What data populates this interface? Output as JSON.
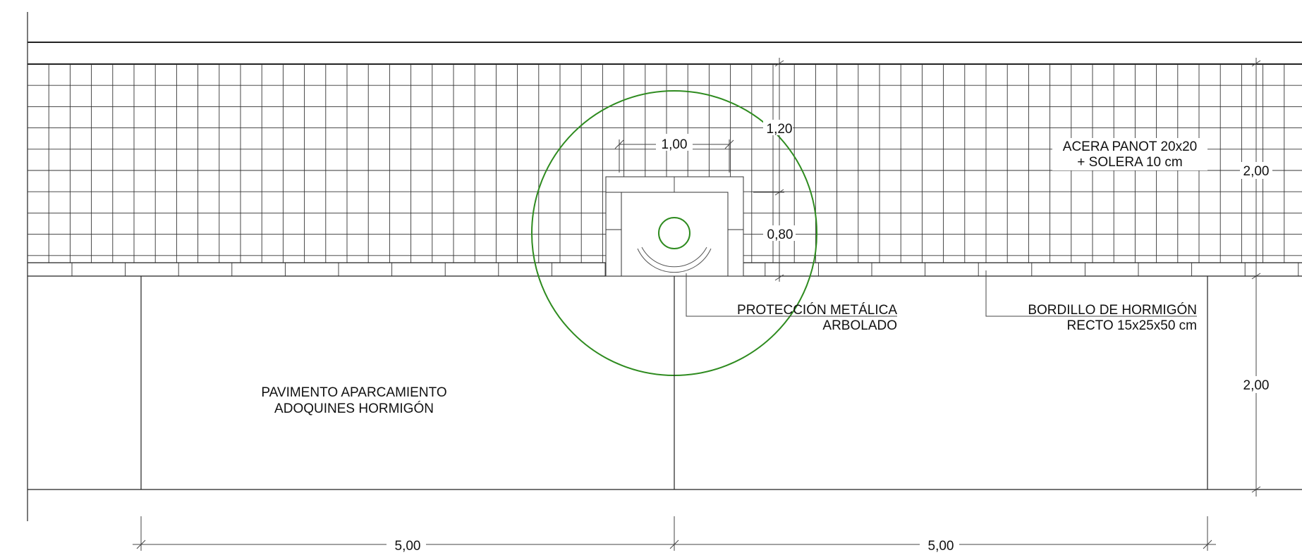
{
  "labels": {
    "sidewalk_line1": "ACERA PANOT 20x20",
    "sidewalk_line2": "+ SOLERA 10 cm",
    "protection_line1": "PROTECCIÓN METÁLICA",
    "protection_line2": "ARBOLADO",
    "curb_line1": "BORDILLO DE HORMIGÓN",
    "curb_line2": "RECTO 15x25x50 cm",
    "parking_line1": "PAVIMENTO APARCAMIENTO",
    "parking_line2": "ADOQUINES HORMIGÓN"
  },
  "dimensions": {
    "pit_width": "1,00",
    "tree_offset": "1,20",
    "pit_depth": "0,80",
    "sidewalk_width": "2,00",
    "parking_depth": "2,00",
    "bay_left": "5,00",
    "bay_right": "5,00"
  },
  "colors": {
    "line": "#222222",
    "tree_canopy": "#2e8b1f"
  }
}
